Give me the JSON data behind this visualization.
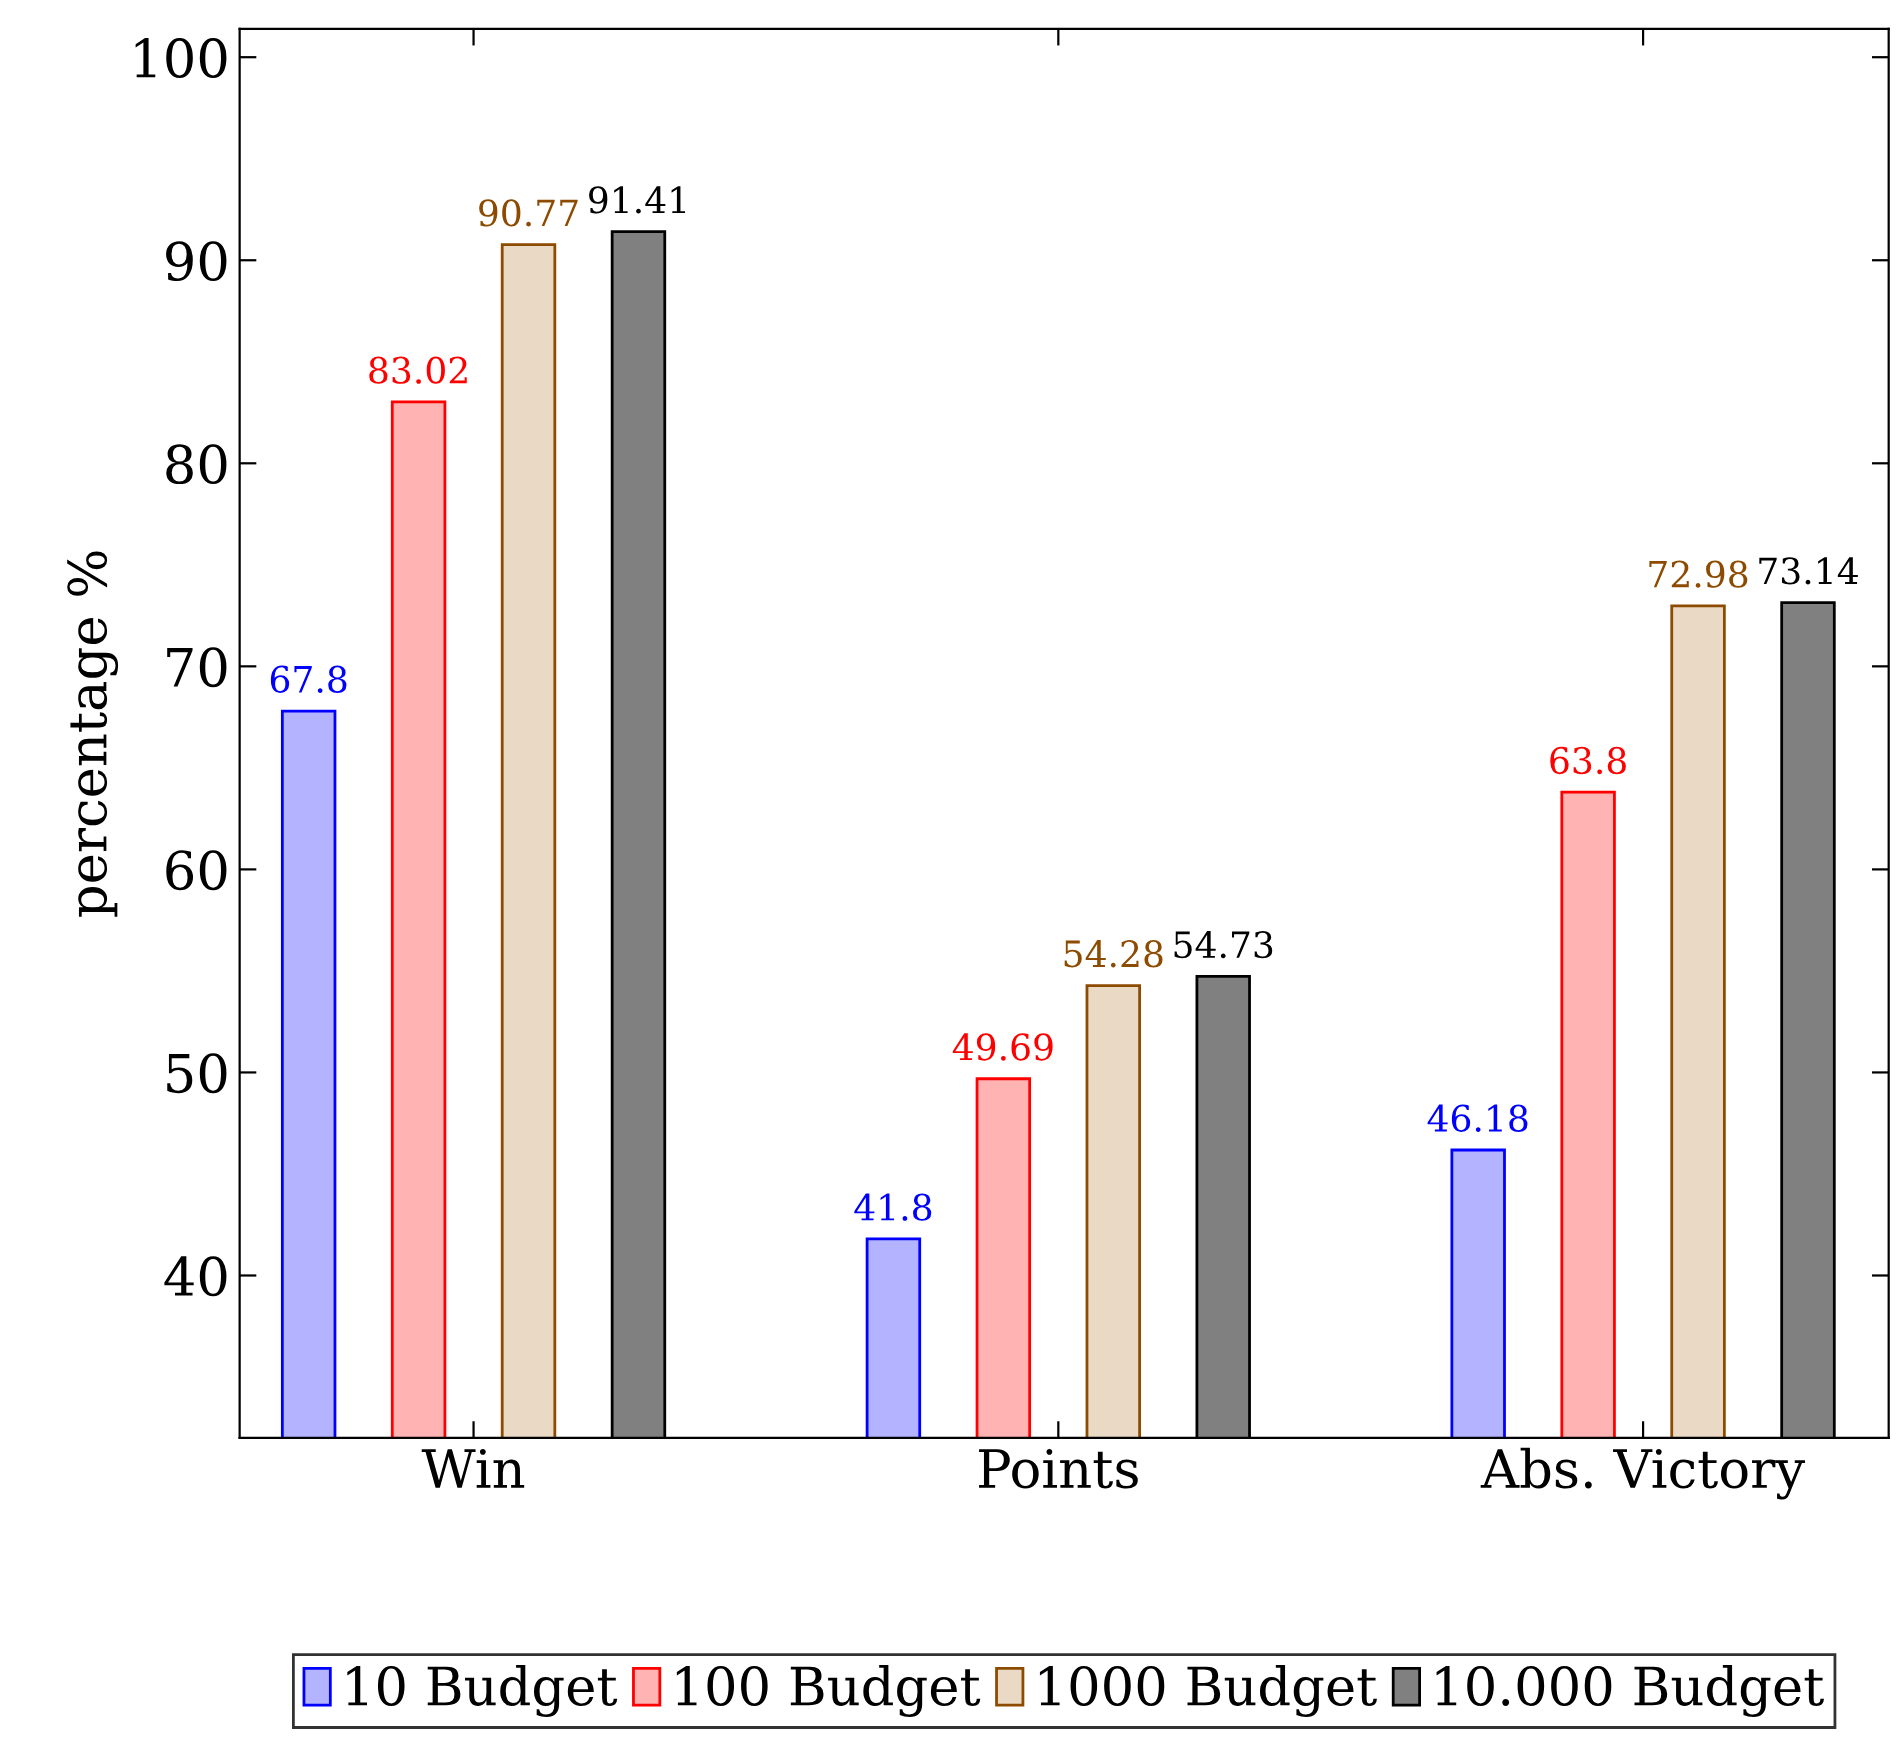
{
  "chart_data": {
    "type": "bar",
    "ylabel": "percentage %",
    "categories": [
      "Win",
      "Points",
      "Abs. Victory"
    ],
    "series": [
      {
        "name": "10 Budget",
        "color": "#b3b3ff",
        "values": [
          67.8,
          41.8,
          46.18
        ]
      },
      {
        "name": "100 Budget",
        "color": "#ffb3b3",
        "values": [
          83.02,
          49.69,
          63.8
        ]
      },
      {
        "name": "1000 Budget",
        "color": "#ead9c5",
        "values": [
          90.77,
          54.28,
          72.98
        ]
      },
      {
        "name": "10.000 Budget",
        "color": "#808080",
        "values": [
          91.41,
          54.73,
          73.14
        ]
      }
    ],
    "ylim": [
      32,
      101.4
    ],
    "yticks": [
      40,
      50,
      60,
      70,
      80,
      90,
      100
    ],
    "data_labels": true,
    "legend": "bottom",
    "grid": false
  }
}
